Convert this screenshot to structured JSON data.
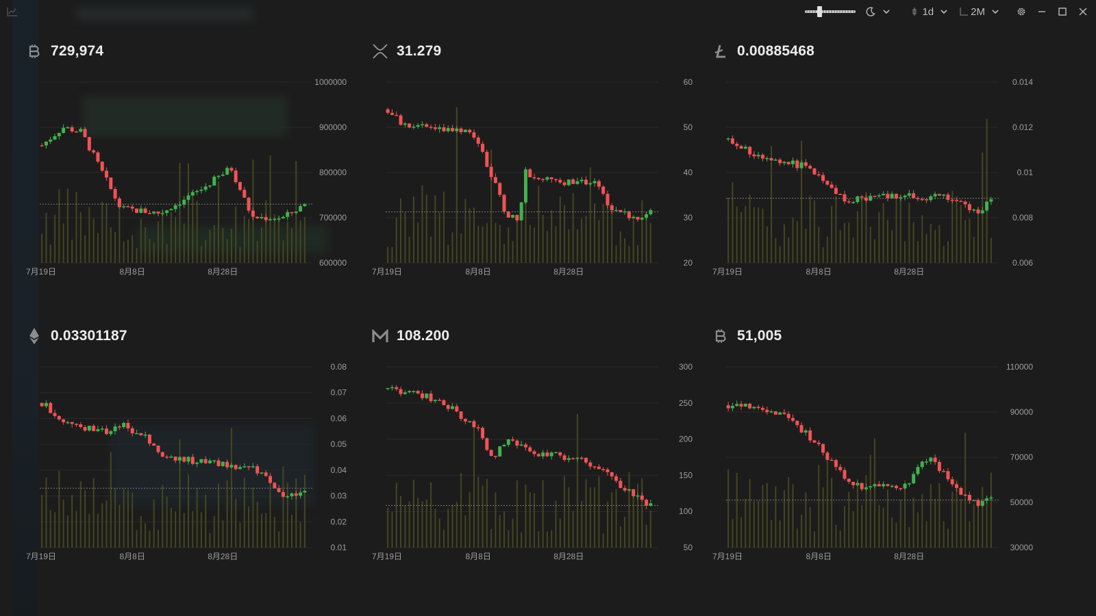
{
  "titlebar": {
    "interval": "1d",
    "range": "2M"
  },
  "colors": {
    "up": "#3fb24f",
    "down": "#f05355",
    "volume": "#454620",
    "axis_text": "#9e9e9e",
    "grid": "#2a2a2a"
  },
  "panels": [
    {
      "icon": "bitcoin-icon",
      "price": "729,974",
      "chart_data": {
        "type": "candlestick",
        "title": "",
        "ylim": [
          600000,
          1000000
        ],
        "y_ticks": [
          "1000000",
          "900000",
          "800000",
          "700000",
          "600000"
        ],
        "x_labels": [
          "7月19日",
          "8月8日",
          "8月28日"
        ],
        "start": 860000,
        "end": 729974,
        "low_min": 660000,
        "high_max": 960000,
        "last": 730000,
        "path": [
          [
            0,
            860000
          ],
          [
            0.08,
            900000
          ],
          [
            0.15,
            890000
          ],
          [
            0.3,
            720000
          ],
          [
            0.45,
            710000
          ],
          [
            0.6,
            760000
          ],
          [
            0.72,
            810000
          ],
          [
            0.8,
            700000
          ],
          [
            0.92,
            700000
          ],
          [
            1,
            729974
          ]
        ]
      }
    },
    {
      "icon": "xrp-icon",
      "price": "31.279",
      "chart_data": {
        "type": "candlestick",
        "title": "",
        "ylim": [
          20,
          60
        ],
        "y_ticks": [
          "60",
          "50",
          "40",
          "30",
          "20"
        ],
        "x_labels": [
          "7月19日",
          "8月8日",
          "8月28日"
        ],
        "last": 31.279,
        "path": [
          [
            0,
            54
          ],
          [
            0.05,
            51
          ],
          [
            0.3,
            49
          ],
          [
            0.35,
            46
          ],
          [
            0.45,
            31
          ],
          [
            0.5,
            30
          ],
          [
            0.52,
            40
          ],
          [
            0.65,
            38
          ],
          [
            0.7,
            38
          ],
          [
            0.8,
            38
          ],
          [
            0.83,
            33
          ],
          [
            0.95,
            29
          ],
          [
            1,
            31.279
          ]
        ]
      }
    },
    {
      "icon": "litecoin-icon",
      "price": "0.00885468",
      "chart_data": {
        "type": "candlestick",
        "title": "",
        "ylim": [
          0.006,
          0.014
        ],
        "y_ticks": [
          "0.014",
          "0.012",
          "0.01",
          "0.008",
          "0.006"
        ],
        "x_labels": [
          "7月19日",
          "8月8日",
          "8月28日"
        ],
        "last": 0.00885468,
        "path": [
          [
            0,
            0.0115
          ],
          [
            0.1,
            0.0108
          ],
          [
            0.28,
            0.0103
          ],
          [
            0.35,
            0.0098
          ],
          [
            0.45,
            0.0088
          ],
          [
            0.6,
            0.009
          ],
          [
            0.8,
            0.0089
          ],
          [
            0.9,
            0.0087
          ],
          [
            0.95,
            0.0081
          ],
          [
            1,
            0.0089
          ]
        ]
      }
    },
    {
      "icon": "ethereum-icon",
      "price": "0.03301187",
      "chart_data": {
        "type": "candlestick",
        "title": "",
        "ylim": [
          0.01,
          0.08
        ],
        "y_ticks": [
          "0.08",
          "0.07",
          "0.06",
          "0.05",
          "0.04",
          "0.03",
          "0.02",
          "0.01"
        ],
        "x_labels": [
          "7月19日",
          "8月8日",
          "8月28日"
        ],
        "last": 0.03301187,
        "path": [
          [
            0,
            0.066
          ],
          [
            0.1,
            0.058
          ],
          [
            0.25,
            0.055
          ],
          [
            0.3,
            0.058
          ],
          [
            0.4,
            0.052
          ],
          [
            0.45,
            0.045
          ],
          [
            0.55,
            0.044
          ],
          [
            0.7,
            0.042
          ],
          [
            0.82,
            0.04
          ],
          [
            0.92,
            0.029
          ],
          [
            1,
            0.033
          ]
        ]
      }
    },
    {
      "icon": "monero-icon",
      "price": "108.200",
      "chart_data": {
        "type": "candlestick",
        "title": "",
        "ylim": [
          50,
          300
        ],
        "y_ticks": [
          "300",
          "250",
          "200",
          "150",
          "100",
          "50"
        ],
        "x_labels": [
          "7月19日",
          "8月8日",
          "8月28日"
        ],
        "last": 108.2,
        "path": [
          [
            0,
            270
          ],
          [
            0.15,
            260
          ],
          [
            0.25,
            240
          ],
          [
            0.35,
            210
          ],
          [
            0.4,
            170
          ],
          [
            0.45,
            200
          ],
          [
            0.55,
            180
          ],
          [
            0.7,
            175
          ],
          [
            0.82,
            160
          ],
          [
            0.9,
            130
          ],
          [
            1,
            108.2
          ]
        ]
      }
    },
    {
      "icon": "bitcoin-cash-icon",
      "price": "51,005",
      "chart_data": {
        "type": "candlestick",
        "title": "",
        "ylim": [
          30000,
          110000
        ],
        "y_ticks": [
          "110000",
          "90000",
          "70000",
          "50000",
          "30000"
        ],
        "x_labels": [
          "7月19日",
          "8月8日",
          "8月28日"
        ],
        "last": 51005,
        "path": [
          [
            0,
            93000
          ],
          [
            0.1,
            92000
          ],
          [
            0.2,
            89000
          ],
          [
            0.3,
            80000
          ],
          [
            0.38,
            70000
          ],
          [
            0.48,
            57000
          ],
          [
            0.6,
            58000
          ],
          [
            0.68,
            57000
          ],
          [
            0.75,
            70000
          ],
          [
            0.8,
            66000
          ],
          [
            0.85,
            57000
          ],
          [
            0.95,
            49000
          ],
          [
            1,
            51005
          ]
        ]
      }
    }
  ]
}
